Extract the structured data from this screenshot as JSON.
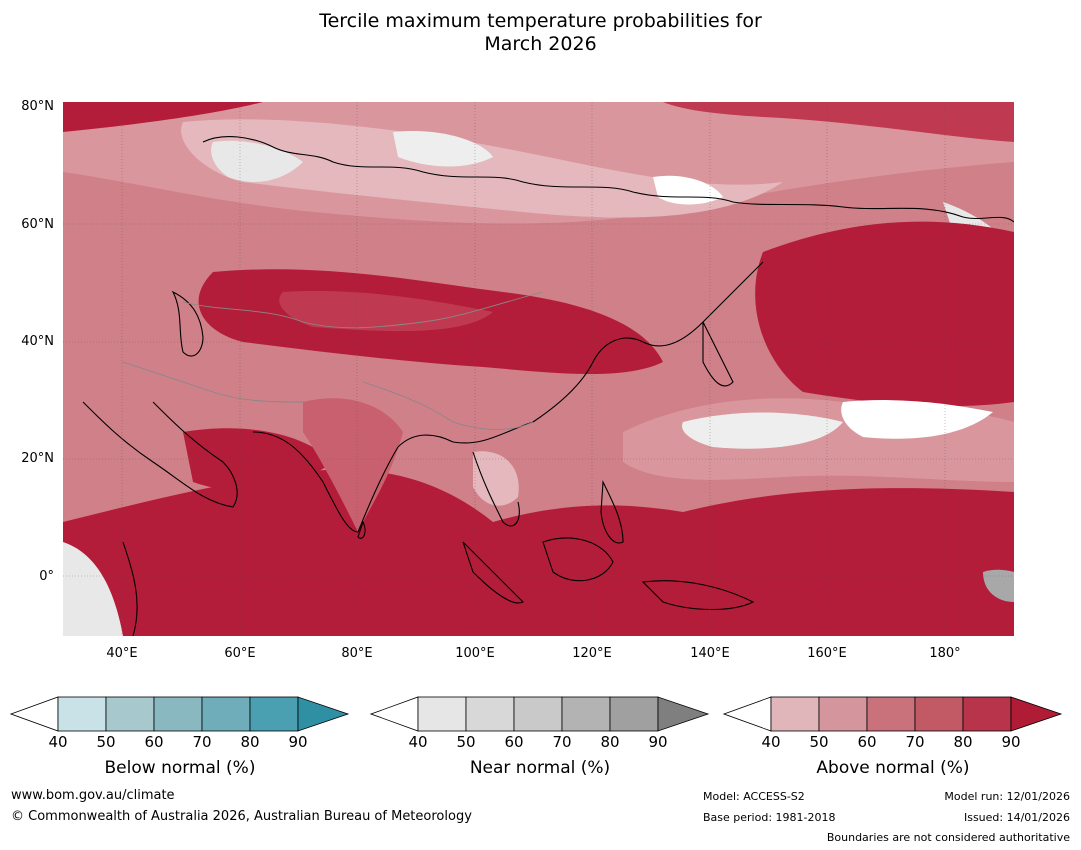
{
  "title": {
    "line1": "Tercile maximum temperature probabilities for",
    "line2": "March 2026"
  },
  "map": {
    "lat_labels": [
      "80°N",
      "60°N",
      "40°N",
      "20°N",
      "0°"
    ],
    "lon_labels": [
      "40°E",
      "60°E",
      "80°E",
      "100°E",
      "120°E",
      "140°E",
      "160°E",
      "180°"
    ],
    "colors": {
      "above_90": "#b41d3a",
      "above_80": "#bf3a51",
      "above_70": "#c9606f",
      "above_60": "#d08088",
      "above_50": "#d9979d",
      "above_40": "#e4b8bc",
      "near_40": "#e8e8e8",
      "near_50": "#d6d6d6",
      "white": "#ffffff",
      "below_50": "#a6c8cd"
    }
  },
  "colorbars": [
    {
      "title": "Below normal (%)",
      "ticks": [
        "40",
        "50",
        "60",
        "70",
        "80",
        "90"
      ],
      "colors": [
        "#ffffff",
        "#c8e2e7",
        "#a7c9ce",
        "#8ab8c0",
        "#6eadb9",
        "#4aa0b0",
        "#2f8fa3"
      ]
    },
    {
      "title": "Near normal (%)",
      "ticks": [
        "40",
        "50",
        "60",
        "70",
        "80",
        "90"
      ],
      "colors": [
        "#ffffff",
        "#e6e6e6",
        "#d8d8d8",
        "#c9c9c9",
        "#b3b3b3",
        "#a0a0a0",
        "#7f7f7f"
      ]
    },
    {
      "title": "Above normal (%)",
      "ticks": [
        "40",
        "50",
        "60",
        "70",
        "80",
        "90"
      ],
      "colors": [
        "#ffffff",
        "#e1b6ba",
        "#d5959c",
        "#c9727c",
        "#c25a66",
        "#b8344a",
        "#b01c36"
      ]
    }
  ],
  "footer": {
    "website": "www.bom.gov.au/climate",
    "copyright": "© Commonwealth of Australia 2026, Australian Bureau of Meteorology",
    "model": "Model: ACCESS-S2",
    "base_period": "Base period: 1981-2018",
    "model_run": "Model run: 12/01/2026",
    "issued": "Issued: 14/01/2026",
    "disclaimer": "Boundaries are not considered authoritative"
  }
}
